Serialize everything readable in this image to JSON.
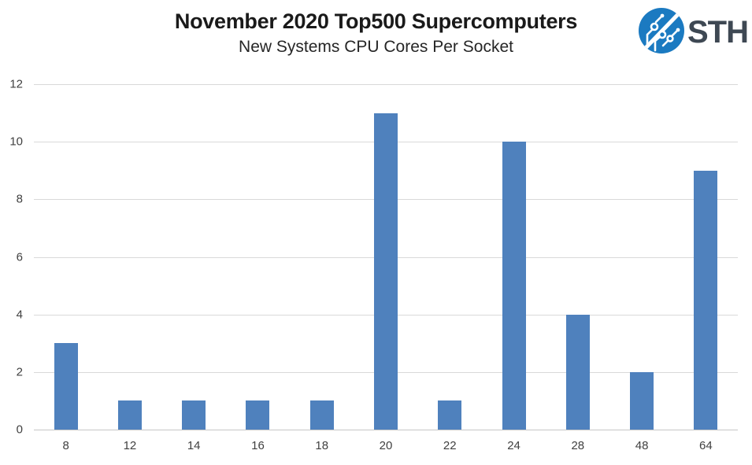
{
  "header": {
    "title": "November 2020 Top500 Supercomputers",
    "subtitle": "New Systems CPU Cores Per Socket"
  },
  "logo": {
    "text": "STH",
    "circle_color": "#1b7ac1",
    "text_color": "#3e4853"
  },
  "chart_data": {
    "type": "bar",
    "title": "November 2020 Top500 Supercomputers",
    "subtitle": "New Systems CPU Cores Per Socket",
    "categories": [
      "8",
      "12",
      "14",
      "16",
      "18",
      "20",
      "22",
      "24",
      "28",
      "48",
      "64"
    ],
    "values": [
      3,
      1,
      1,
      1,
      1,
      11,
      1,
      10,
      4,
      2,
      9
    ],
    "xlabel": "",
    "ylabel": "",
    "ylim": [
      0,
      12
    ],
    "yticks": [
      0,
      2,
      4,
      6,
      8,
      10,
      12
    ],
    "bar_color": "#4F81BD",
    "gridline_color": "#D9D9D9",
    "grid": true,
    "legend_position": "none"
  }
}
